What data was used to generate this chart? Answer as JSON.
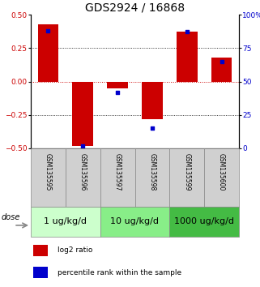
{
  "title": "GDS2924 / 16868",
  "samples": [
    "GSM135595",
    "GSM135596",
    "GSM135597",
    "GSM135598",
    "GSM135599",
    "GSM135600"
  ],
  "log2_ratio": [
    0.43,
    -0.48,
    -0.05,
    -0.28,
    0.37,
    0.18
  ],
  "percentile_rank": [
    88,
    2,
    42,
    15,
    87,
    65
  ],
  "ylim_left": [
    -0.5,
    0.5
  ],
  "ylim_right": [
    0,
    100
  ],
  "yticks_left": [
    -0.5,
    -0.25,
    0,
    0.25,
    0.5
  ],
  "yticks_right": [
    0,
    25,
    50,
    75,
    100
  ],
  "ytick_labels_right": [
    "0",
    "25",
    "50",
    "75",
    "100%"
  ],
  "bar_color": "#cc0000",
  "square_color": "#0000cc",
  "zero_line_color": "#cc0000",
  "dose_groups": [
    {
      "label": "1 ug/kg/d",
      "indices": [
        0,
        1
      ],
      "color": "#ccffcc"
    },
    {
      "label": "10 ug/kg/d",
      "indices": [
        2,
        3
      ],
      "color": "#88ee88"
    },
    {
      "label": "1000 ug/kg/d",
      "indices": [
        4,
        5
      ],
      "color": "#44bb44"
    }
  ],
  "dose_label": "dose",
  "legend_log2": "log2 ratio",
  "legend_pct": "percentile rank within the sample",
  "square_size": 8,
  "title_fontsize": 10,
  "tick_fontsize": 6.5,
  "sample_fontsize": 5.5,
  "dose_fontsize": 8,
  "legend_fontsize": 6.5
}
